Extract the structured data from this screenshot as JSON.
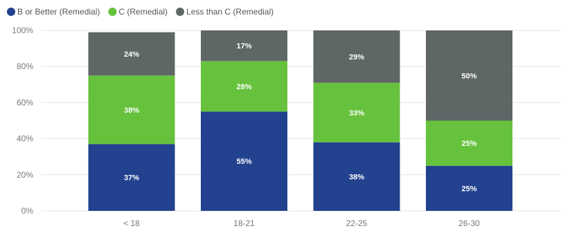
{
  "chart_data": {
    "type": "bar",
    "stacked": true,
    "categories": [
      "< 18",
      "18-21",
      "22-25",
      "26-30"
    ],
    "series": [
      {
        "name": "B or Better (Remedial)",
        "color": "#22428f",
        "values": [
          37,
          55,
          38,
          25
        ],
        "labels": [
          "37%",
          "55%",
          "38%",
          "25%"
        ]
      },
      {
        "name": "C (Remedial)",
        "color": "#66c13c",
        "values": [
          38,
          28,
          33,
          25
        ],
        "labels": [
          "38%",
          "28%",
          "33%",
          "25%"
        ]
      },
      {
        "name": "Less than C (Remedial)",
        "color": "#5e6766",
        "values": [
          24,
          17,
          29,
          50
        ],
        "labels": [
          "24%",
          "17%",
          "29%",
          "50%"
        ]
      }
    ],
    "ylim": [
      0,
      100
    ],
    "yticks": [
      "0%",
      "20%",
      "40%",
      "60%",
      "80%",
      "100%"
    ],
    "grid": true,
    "legend_position": "top-left"
  }
}
